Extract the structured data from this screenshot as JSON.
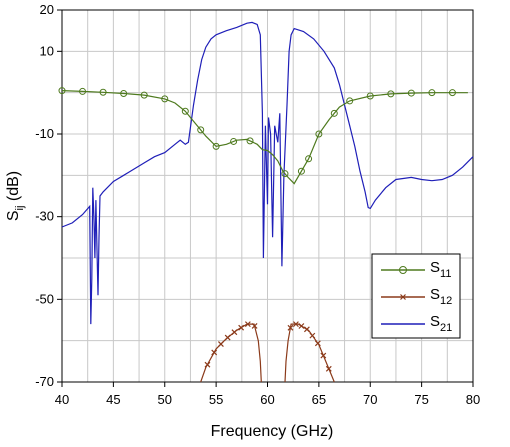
{
  "chart_data": {
    "type": "line",
    "xlabel": "Frequency (GHz)",
    "ylabel_main": "S",
    "ylabel_sub": "ij",
    "ylabel_unit": " (dB)",
    "xlim": [
      40,
      80
    ],
    "ylim": [
      -70,
      20
    ],
    "x_ticks": [
      40,
      45,
      50,
      55,
      60,
      65,
      70,
      75,
      80
    ],
    "y_ticks": [
      20,
      10,
      -10,
      -30,
      -50,
      -70
    ],
    "grid": true,
    "legend_position": "right",
    "series": [
      {
        "name_main": "S",
        "name_sub": "11",
        "color": "#4e7a1e",
        "marker": "circle",
        "points": [
          [
            40,
            0.5
          ],
          [
            42,
            0.3
          ],
          [
            44,
            0.1
          ],
          [
            46,
            -0.2
          ],
          [
            48,
            -0.6
          ],
          [
            50,
            -1.5
          ],
          [
            51,
            -2.5
          ],
          [
            52,
            -4.5
          ],
          [
            53,
            -7.5
          ],
          [
            54,
            -10.5
          ],
          [
            55,
            -13
          ],
          [
            56,
            -12.5
          ],
          [
            57,
            -11.5
          ],
          [
            58,
            -11.3
          ],
          [
            59,
            -12.5
          ],
          [
            59.5,
            -13.8
          ],
          [
            60,
            -14
          ],
          [
            60.5,
            -15
          ],
          [
            61,
            -16.5
          ],
          [
            61.5,
            -19
          ],
          [
            62,
            -20.5
          ],
          [
            62.6,
            -22
          ],
          [
            63.3,
            -19
          ],
          [
            64,
            -16
          ],
          [
            65,
            -10
          ],
          [
            66,
            -6.5
          ],
          [
            67,
            -3.5
          ],
          [
            68,
            -2
          ],
          [
            70,
            -0.8
          ],
          [
            72,
            -0.3
          ],
          [
            74,
            -0.1
          ],
          [
            76,
            0
          ],
          [
            78,
            0
          ],
          [
            79.5,
            0
          ]
        ],
        "marker_x": [
          40,
          42,
          44,
          46,
          48,
          50,
          52,
          53.5,
          55,
          56.7,
          58.3,
          61.7,
          63.3,
          64,
          65,
          66.5,
          68,
          70,
          72,
          74,
          76,
          78
        ]
      },
      {
        "name_main": "S",
        "name_sub": "12",
        "color": "#8b3a1a",
        "marker": "x",
        "segments": [
          [
            [
              53.5,
              -70
            ],
            [
              54,
              -66.5
            ],
            [
              55,
              -62
            ],
            [
              56,
              -59.5
            ],
            [
              57,
              -57.5
            ],
            [
              58,
              -56
            ],
            [
              58.7,
              -56
            ],
            [
              59.1,
              -60
            ],
            [
              59.3,
              -65
            ],
            [
              59.4,
              -70
            ]
          ],
          [
            [
              61.7,
              -70
            ],
            [
              61.8,
              -65
            ],
            [
              62,
              -60
            ],
            [
              62.3,
              -56
            ],
            [
              63,
              -56
            ],
            [
              64,
              -57.5
            ],
            [
              65,
              -61
            ],
            [
              66,
              -67
            ],
            [
              66.5,
              -70
            ]
          ]
        ]
      },
      {
        "name_main": "S",
        "name_sub": "21",
        "color": "#1f1fb8",
        "marker": "none",
        "points": [
          [
            40,
            -32.5
          ],
          [
            41,
            -31.5
          ],
          [
            42,
            -29.5
          ],
          [
            42.7,
            -27.5
          ],
          [
            42.8,
            -56
          ],
          [
            42.9,
            -45
          ],
          [
            43,
            -23
          ],
          [
            43.1,
            -30
          ],
          [
            43.2,
            -40
          ],
          [
            43.3,
            -26
          ],
          [
            43.5,
            -49
          ],
          [
            43.6,
            -35
          ],
          [
            43.7,
            -25
          ],
          [
            44,
            -24
          ],
          [
            45,
            -21.5
          ],
          [
            46,
            -20
          ],
          [
            47,
            -18.5
          ],
          [
            48,
            -17
          ],
          [
            49,
            -15.5
          ],
          [
            50,
            -14.5
          ],
          [
            51,
            -12.5
          ],
          [
            51.5,
            -11.5
          ],
          [
            52,
            -12.5
          ],
          [
            52.3,
            -12
          ],
          [
            52.8,
            -3
          ],
          [
            53.2,
            3
          ],
          [
            53.6,
            8
          ],
          [
            54,
            11
          ],
          [
            54.5,
            13
          ],
          [
            55,
            14
          ],
          [
            56,
            15
          ],
          [
            57,
            15.8
          ],
          [
            58,
            16.8
          ],
          [
            58.5,
            17
          ],
          [
            59,
            16.5
          ],
          [
            59.3,
            14
          ],
          [
            59.5,
            -5
          ],
          [
            59.6,
            -40
          ],
          [
            59.8,
            -8
          ],
          [
            60,
            -27
          ],
          [
            60.1,
            -6
          ],
          [
            60.3,
            -10
          ],
          [
            60.5,
            -35
          ],
          [
            60.7,
            -8
          ],
          [
            61,
            -12
          ],
          [
            61.2,
            -5
          ],
          [
            61.4,
            -42
          ],
          [
            61.6,
            -20
          ],
          [
            61.9,
            -3
          ],
          [
            62.1,
            10
          ],
          [
            62.3,
            14
          ],
          [
            62.6,
            15.5
          ],
          [
            63.5,
            14.8
          ],
          [
            64.5,
            13
          ],
          [
            65.5,
            10
          ],
          [
            66.5,
            6
          ],
          [
            67,
            2
          ],
          [
            68,
            -8
          ],
          [
            68.5,
            -13
          ],
          [
            69,
            -19
          ],
          [
            69.5,
            -24
          ],
          [
            69.8,
            -27.8
          ],
          [
            70,
            -28
          ],
          [
            70.5,
            -26
          ],
          [
            71.5,
            -23
          ],
          [
            72.5,
            -21
          ],
          [
            74,
            -20.5
          ],
          [
            75,
            -21
          ],
          [
            76,
            -21.3
          ],
          [
            77,
            -21
          ],
          [
            78,
            -20
          ],
          [
            79,
            -18
          ],
          [
            80,
            -15.5
          ]
        ]
      }
    ]
  }
}
